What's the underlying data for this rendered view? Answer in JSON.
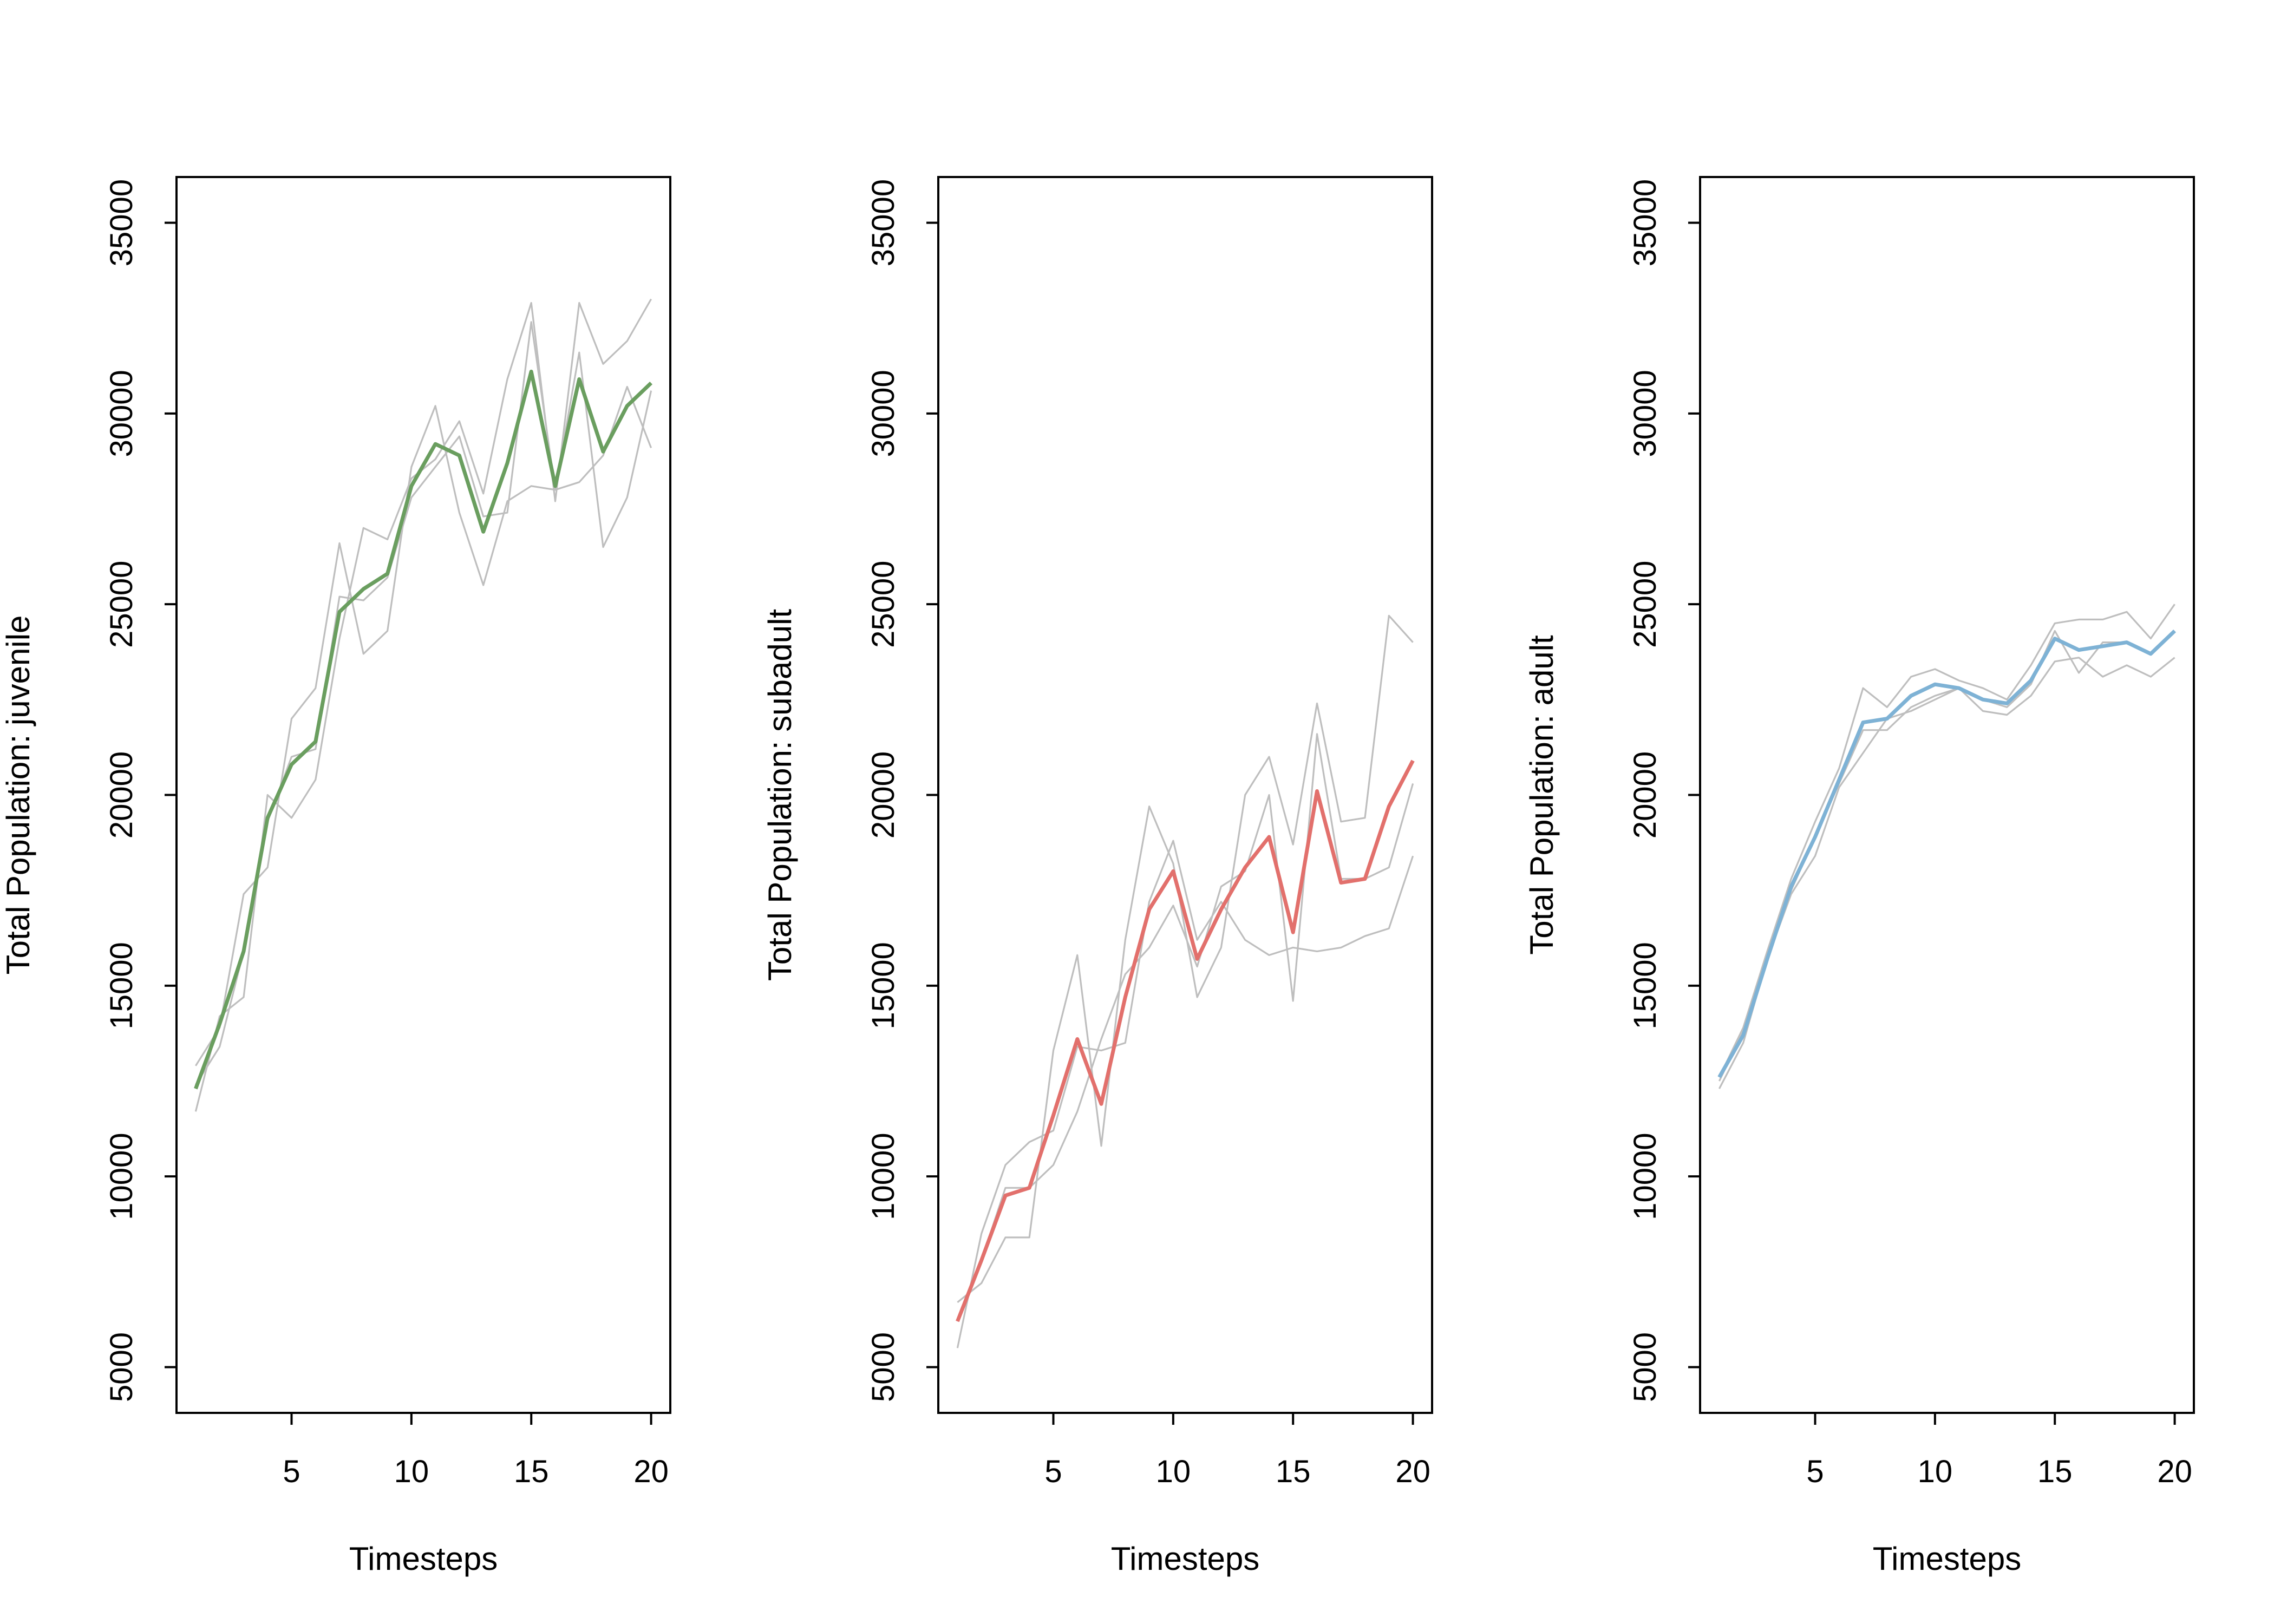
{
  "chart_data": [
    {
      "type": "line",
      "title": "",
      "xlabel": "Timesteps",
      "ylabel": "Total Population:  juvenile",
      "xlim": [
        0.2,
        20.8
      ],
      "ylim": [
        3800,
        36200
      ],
      "xticks": [
        5,
        10,
        15,
        20
      ],
      "yticks": [
        5000,
        10000,
        15000,
        20000,
        25000,
        30000,
        35000
      ],
      "grid": false,
      "legend": "none",
      "x": [
        1,
        2,
        3,
        4,
        5,
        6,
        7,
        8,
        9,
        10,
        11,
        12,
        13,
        14,
        15,
        16,
        17,
        18,
        19,
        20
      ],
      "series": [
        {
          "color": "#bebebe",
          "values": [
            12900,
            13900,
            17400,
            18100,
            22000,
            22800,
            26600,
            23700,
            24300,
            28600,
            30200,
            27400,
            25500,
            27700,
            28100,
            28000,
            28200,
            28900,
            30700,
            29100
          ]
        },
        {
          "color": "#bebebe",
          "values": [
            11700,
            14200,
            14700,
            20000,
            19400,
            20400,
            24100,
            27000,
            26700,
            28300,
            28800,
            29800,
            27900,
            30900,
            32900,
            27700,
            32900,
            31300,
            31900,
            33000
          ]
        },
        {
          "color": "#bebebe",
          "values": [
            12400,
            13400,
            15900,
            19300,
            21000,
            21200,
            25200,
            25100,
            25700,
            27800,
            28600,
            29400,
            27300,
            27400,
            32400,
            28000,
            31600,
            26500,
            27800,
            30600
          ]
        },
        {
          "color": "#6a9e5f",
          "values": [
            12300,
            14000,
            15900,
            19400,
            20800,
            21400,
            24800,
            25400,
            25800,
            28100,
            29200,
            28900,
            26900,
            28700,
            31100,
            28100,
            30900,
            29000,
            30200,
            30800
          ]
        }
      ]
    },
    {
      "type": "line",
      "title": "",
      "xlabel": "Timesteps",
      "ylabel": "Total Population:  subadult",
      "xlim": [
        0.2,
        20.8
      ],
      "ylim": [
        3800,
        36200
      ],
      "xticks": [
        5,
        10,
        15,
        20
      ],
      "yticks": [
        5000,
        10000,
        15000,
        20000,
        25000,
        30000,
        35000
      ],
      "grid": false,
      "legend": "none",
      "x": [
        1,
        2,
        3,
        4,
        5,
        6,
        7,
        8,
        9,
        10,
        11,
        12,
        13,
        14,
        15,
        16,
        17,
        18,
        19,
        20
      ],
      "series": [
        {
          "color": "#bebebe",
          "values": [
            6700,
            7200,
            8400,
            8400,
            13300,
            15800,
            10800,
            16200,
            19700,
            18200,
            14700,
            16000,
            20000,
            21000,
            18700,
            22400,
            19300,
            19400,
            24700,
            24000
          ]
        },
        {
          "color": "#bebebe",
          "values": [
            5500,
            8500,
            10300,
            10900,
            11200,
            13400,
            13300,
            13500,
            17200,
            18800,
            16200,
            17200,
            16200,
            15800,
            16000,
            15900,
            16000,
            16300,
            16500,
            18400
          ]
        },
        {
          "color": "#bebebe",
          "values": [
            6200,
            7800,
            9700,
            9700,
            10300,
            11700,
            13600,
            15300,
            16000,
            17100,
            15500,
            17600,
            18000,
            20000,
            14600,
            21600,
            17800,
            17800,
            18100,
            20300
          ]
        },
        {
          "color": "#e2706c",
          "values": [
            6200,
            7800,
            9500,
            9700,
            11600,
            13600,
            11900,
            14700,
            17000,
            18000,
            15700,
            17000,
            18100,
            18900,
            16400,
            20100,
            17700,
            17800,
            19700,
            20900
          ]
        }
      ]
    },
    {
      "type": "line",
      "title": "",
      "xlabel": "Timesteps",
      "ylabel": "Total Population:  adult",
      "xlim": [
        0.2,
        20.8
      ],
      "ylim": [
        3800,
        36200
      ],
      "xticks": [
        5,
        10,
        15,
        20
      ],
      "yticks": [
        5000,
        10000,
        15000,
        20000,
        25000,
        30000,
        35000
      ],
      "grid": false,
      "legend": "none",
      "x": [
        1,
        2,
        3,
        4,
        5,
        6,
        7,
        8,
        9,
        10,
        11,
        12,
        13,
        14,
        15,
        16,
        17,
        18,
        19,
        20
      ],
      "series": [
        {
          "color": "#bebebe",
          "values": [
            12600,
            13900,
            15900,
            17800,
            19300,
            20700,
            22800,
            22300,
            23100,
            23300,
            23000,
            22800,
            22500,
            23400,
            24500,
            24600,
            24600,
            24800,
            24100,
            25000
          ]
        },
        {
          "color": "#bebebe",
          "values": [
            12300,
            13500,
            15700,
            17400,
            18400,
            20200,
            21100,
            22000,
            22200,
            22500,
            22800,
            22200,
            22100,
            22600,
            23500,
            23600,
            23100,
            23400,
            23100,
            23600
          ]
        },
        {
          "color": "#bebebe",
          "values": [
            12500,
            13800,
            15700,
            17500,
            18900,
            20300,
            21700,
            21700,
            22300,
            22600,
            22800,
            22500,
            22300,
            22900,
            24300,
            23200,
            24000,
            24000,
            23700,
            24300
          ]
        },
        {
          "color": "#7eb2d5",
          "values": [
            12600,
            13700,
            15700,
            17600,
            18900,
            20400,
            21900,
            22000,
            22600,
            22900,
            22800,
            22500,
            22400,
            23000,
            24100,
            23800,
            23900,
            24000,
            23700,
            24300
          ]
        }
      ]
    }
  ]
}
